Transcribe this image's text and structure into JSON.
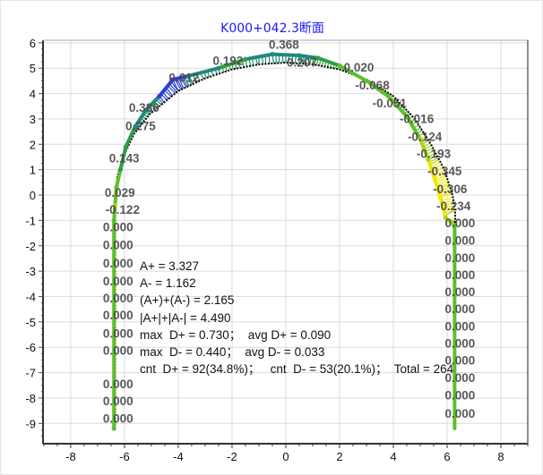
{
  "chart_data": {
    "type": "line",
    "title": "K000+042.3断面",
    "title_color": "#1a1aff",
    "xlim": [
      -9.03,
      9.0
    ],
    "ylim": [
      -9.8,
      6.1
    ],
    "xticks": [
      -8,
      -6,
      -4,
      -2,
      0,
      2,
      4,
      6,
      8
    ],
    "yticks": [
      6,
      5,
      4,
      3,
      2,
      1,
      0,
      -1,
      -2,
      -3,
      -4,
      -5,
      -6,
      -7,
      -8,
      -9
    ],
    "grid": true,
    "series": [
      {
        "role": "design",
        "color": "#000000",
        "style": "dotted",
        "points": [
          [
            -6.35,
            -9.2
          ],
          [
            -6.35,
            0
          ],
          [
            -6.25,
            0.8
          ],
          [
            -6.05,
            1.5
          ],
          [
            -5.65,
            2.4
          ],
          [
            -5.05,
            3.2
          ],
          [
            -4.0,
            4.1
          ],
          [
            -3.0,
            4.6
          ],
          [
            -2.0,
            4.95
          ],
          [
            -1.0,
            5.15
          ],
          [
            0,
            5.22
          ],
          [
            1,
            5.15
          ],
          [
            2,
            4.95
          ],
          [
            3,
            4.55
          ],
          [
            4,
            3.9
          ],
          [
            4.8,
            3.0
          ],
          [
            5.4,
            2.0
          ],
          [
            5.9,
            1.0
          ],
          [
            6.2,
            0.0
          ],
          [
            6.3,
            -0.6
          ],
          [
            6.3,
            -9.2
          ]
        ]
      },
      {
        "role": "measured",
        "points": [
          [
            -6.39,
            -9.2,
            0
          ],
          [
            -6.39,
            -1.0,
            0
          ],
          [
            -6.35,
            -0.4,
            -0.12
          ],
          [
            -6.3,
            0.3,
            0.03
          ],
          [
            -6.15,
            1.0,
            0.14
          ],
          [
            -5.95,
            1.9,
            0.2
          ],
          [
            -5.6,
            2.7,
            0.28
          ],
          [
            -5.2,
            3.35,
            0.39
          ],
          [
            -4.7,
            3.9,
            0.5
          ],
          [
            -4.2,
            4.55,
            0.61
          ],
          [
            -3.6,
            4.7,
            0.4
          ],
          [
            -2.5,
            5.0,
            0.25
          ],
          [
            -1.5,
            5.35,
            0.19
          ],
          [
            -0.5,
            5.55,
            0.37
          ],
          [
            0.5,
            5.5,
            0.3
          ],
          [
            1.2,
            5.4,
            0.2
          ],
          [
            2.0,
            5.1,
            0.02
          ],
          [
            3.0,
            4.5,
            -0.07
          ],
          [
            3.8,
            3.9,
            -0.05
          ],
          [
            4.5,
            3.1,
            -0.02
          ],
          [
            5.0,
            2.2,
            -0.12
          ],
          [
            5.3,
            1.4,
            -0.19
          ],
          [
            5.55,
            0.6,
            -0.35
          ],
          [
            5.75,
            -0.1,
            -0.31
          ],
          [
            5.95,
            -0.9,
            -0.23
          ],
          [
            6.28,
            -1.2,
            0
          ],
          [
            6.28,
            -9.2,
            0
          ]
        ]
      }
    ],
    "deviation_colors": {
      "high_positive": "#2b3fd6",
      "positive": "#1f8a7a",
      "zero": "#5cc02a",
      "negative": "#a8d420",
      "high_negative": "#f0e800"
    },
    "annotations": [
      {
        "text": "0.368",
        "x": -0.07,
        "y": 5.94
      },
      {
        "text": "0.192",
        "x": -2.15,
        "y": 5.3
      },
      {
        "text": "0.207",
        "x": 0.6,
        "y": 5.23
      },
      {
        "text": "0.020",
        "x": 2.72,
        "y": 5.05
      },
      {
        "text": "-0.068",
        "x": 3.22,
        "y": 4.34
      },
      {
        "text": "-0.051",
        "x": 3.86,
        "y": 3.63
      },
      {
        "text": "-0.016",
        "x": 4.87,
        "y": 3.02
      },
      {
        "text": "-0.124",
        "x": 5.17,
        "y": 2.31
      },
      {
        "text": "-0.193",
        "x": 5.5,
        "y": 1.64
      },
      {
        "text": "-0.345",
        "x": 5.91,
        "y": 0.96
      },
      {
        "text": "-0.306",
        "x": 6.11,
        "y": 0.25
      },
      {
        "text": "-0.234",
        "x": 6.24,
        "y": -0.43
      },
      {
        "text": "0.000",
        "x": 6.48,
        "y": -1.1
      },
      {
        "text": "0.000",
        "x": 6.48,
        "y": -1.78
      },
      {
        "text": "0.000",
        "x": 6.48,
        "y": -2.46
      },
      {
        "text": "0.000",
        "x": 6.48,
        "y": -3.13
      },
      {
        "text": "0.000",
        "x": 6.48,
        "y": -3.81
      },
      {
        "text": "0.000",
        "x": 6.48,
        "y": -4.48
      },
      {
        "text": "0.000",
        "x": 6.48,
        "y": -5.16
      },
      {
        "text": "0.000",
        "x": 6.48,
        "y": -5.84
      },
      {
        "text": "0.000",
        "x": 6.48,
        "y": -6.51
      },
      {
        "text": "0.000",
        "x": 6.48,
        "y": -7.19
      },
      {
        "text": "0.000",
        "x": 6.48,
        "y": -7.87
      },
      {
        "text": "0.000",
        "x": 6.48,
        "y": -8.6
      },
      {
        "text": "0.612",
        "x": -3.79,
        "y": 4.63
      },
      {
        "text": "0.386",
        "x": -5.27,
        "y": 3.45
      },
      {
        "text": "0.275",
        "x": -5.4,
        "y": 2.74
      },
      {
        "text": "0.143",
        "x": -6.01,
        "y": 1.46
      },
      {
        "text": "0.029",
        "x": -6.17,
        "y": 0.11
      },
      {
        "text": "-0.122",
        "x": -6.07,
        "y": -0.57
      },
      {
        "text": "0.000",
        "x": -6.24,
        "y": -1.25
      },
      {
        "text": "0.000",
        "x": -6.24,
        "y": -1.96
      },
      {
        "text": "0.000",
        "x": -6.24,
        "y": -2.67
      },
      {
        "text": "0.000",
        "x": -6.24,
        "y": -3.38
      },
      {
        "text": "0.000",
        "x": -6.24,
        "y": -4.06
      },
      {
        "text": "0.000",
        "x": -6.24,
        "y": -4.73
      },
      {
        "text": "0.000",
        "x": -6.24,
        "y": -5.44
      },
      {
        "text": "0.000",
        "x": -6.24,
        "y": -6.12
      },
      {
        "text": "0.000",
        "x": -6.24,
        "y": -7.44
      },
      {
        "text": "0.000",
        "x": -6.24,
        "y": -8.11
      },
      {
        "text": "0.000",
        "x": -6.24,
        "y": -8.79
      }
    ],
    "stats": [
      "A+ = 3.327",
      "A- = 1.162",
      "(A+)+(A-) = 2.165",
      "|A+|+|A-| = 4.490",
      "max  D+ = 0.730；  avg D+ = 0.090",
      "max  D- = 0.440；  avg D- = 0.033",
      "cnt  D+ = 92(34.8%)；   cnt  D- = 53(20.1%)；  Total = 264"
    ]
  }
}
